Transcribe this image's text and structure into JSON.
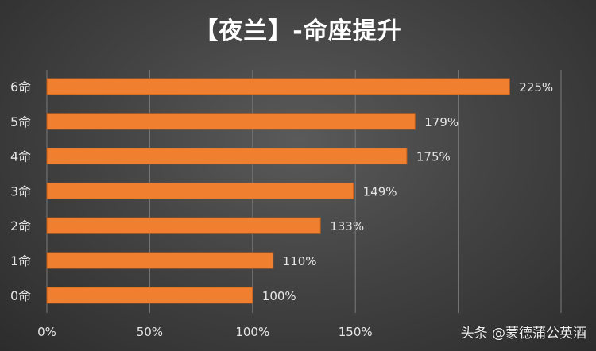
{
  "title": "【夜兰】-命座提升",
  "watermark": "头条 @蒙德蒲公英酒",
  "colors": {
    "bar": "#f07f2f",
    "bar_edge": "#c35f1a",
    "grid": "#7a7a7a",
    "text": "#e6e6e6"
  },
  "chart_data": {
    "type": "bar",
    "orientation": "horizontal",
    "title": "【夜兰】-命座提升",
    "categories": [
      "6命",
      "5命",
      "4命",
      "3命",
      "2命",
      "1命",
      "0命"
    ],
    "values": [
      225,
      179,
      175,
      149,
      133,
      110,
      100
    ],
    "data_labels": [
      "225%",
      "179%",
      "175%",
      "149%",
      "133%",
      "110%",
      "100%"
    ],
    "x_ticks": [
      0,
      50,
      100,
      150,
      200,
      250
    ],
    "x_tick_labels": [
      "0%",
      "50%",
      "100%",
      "150%",
      "",
      ""
    ],
    "xlim": [
      0,
      250
    ],
    "grid": true,
    "legend": "none"
  }
}
